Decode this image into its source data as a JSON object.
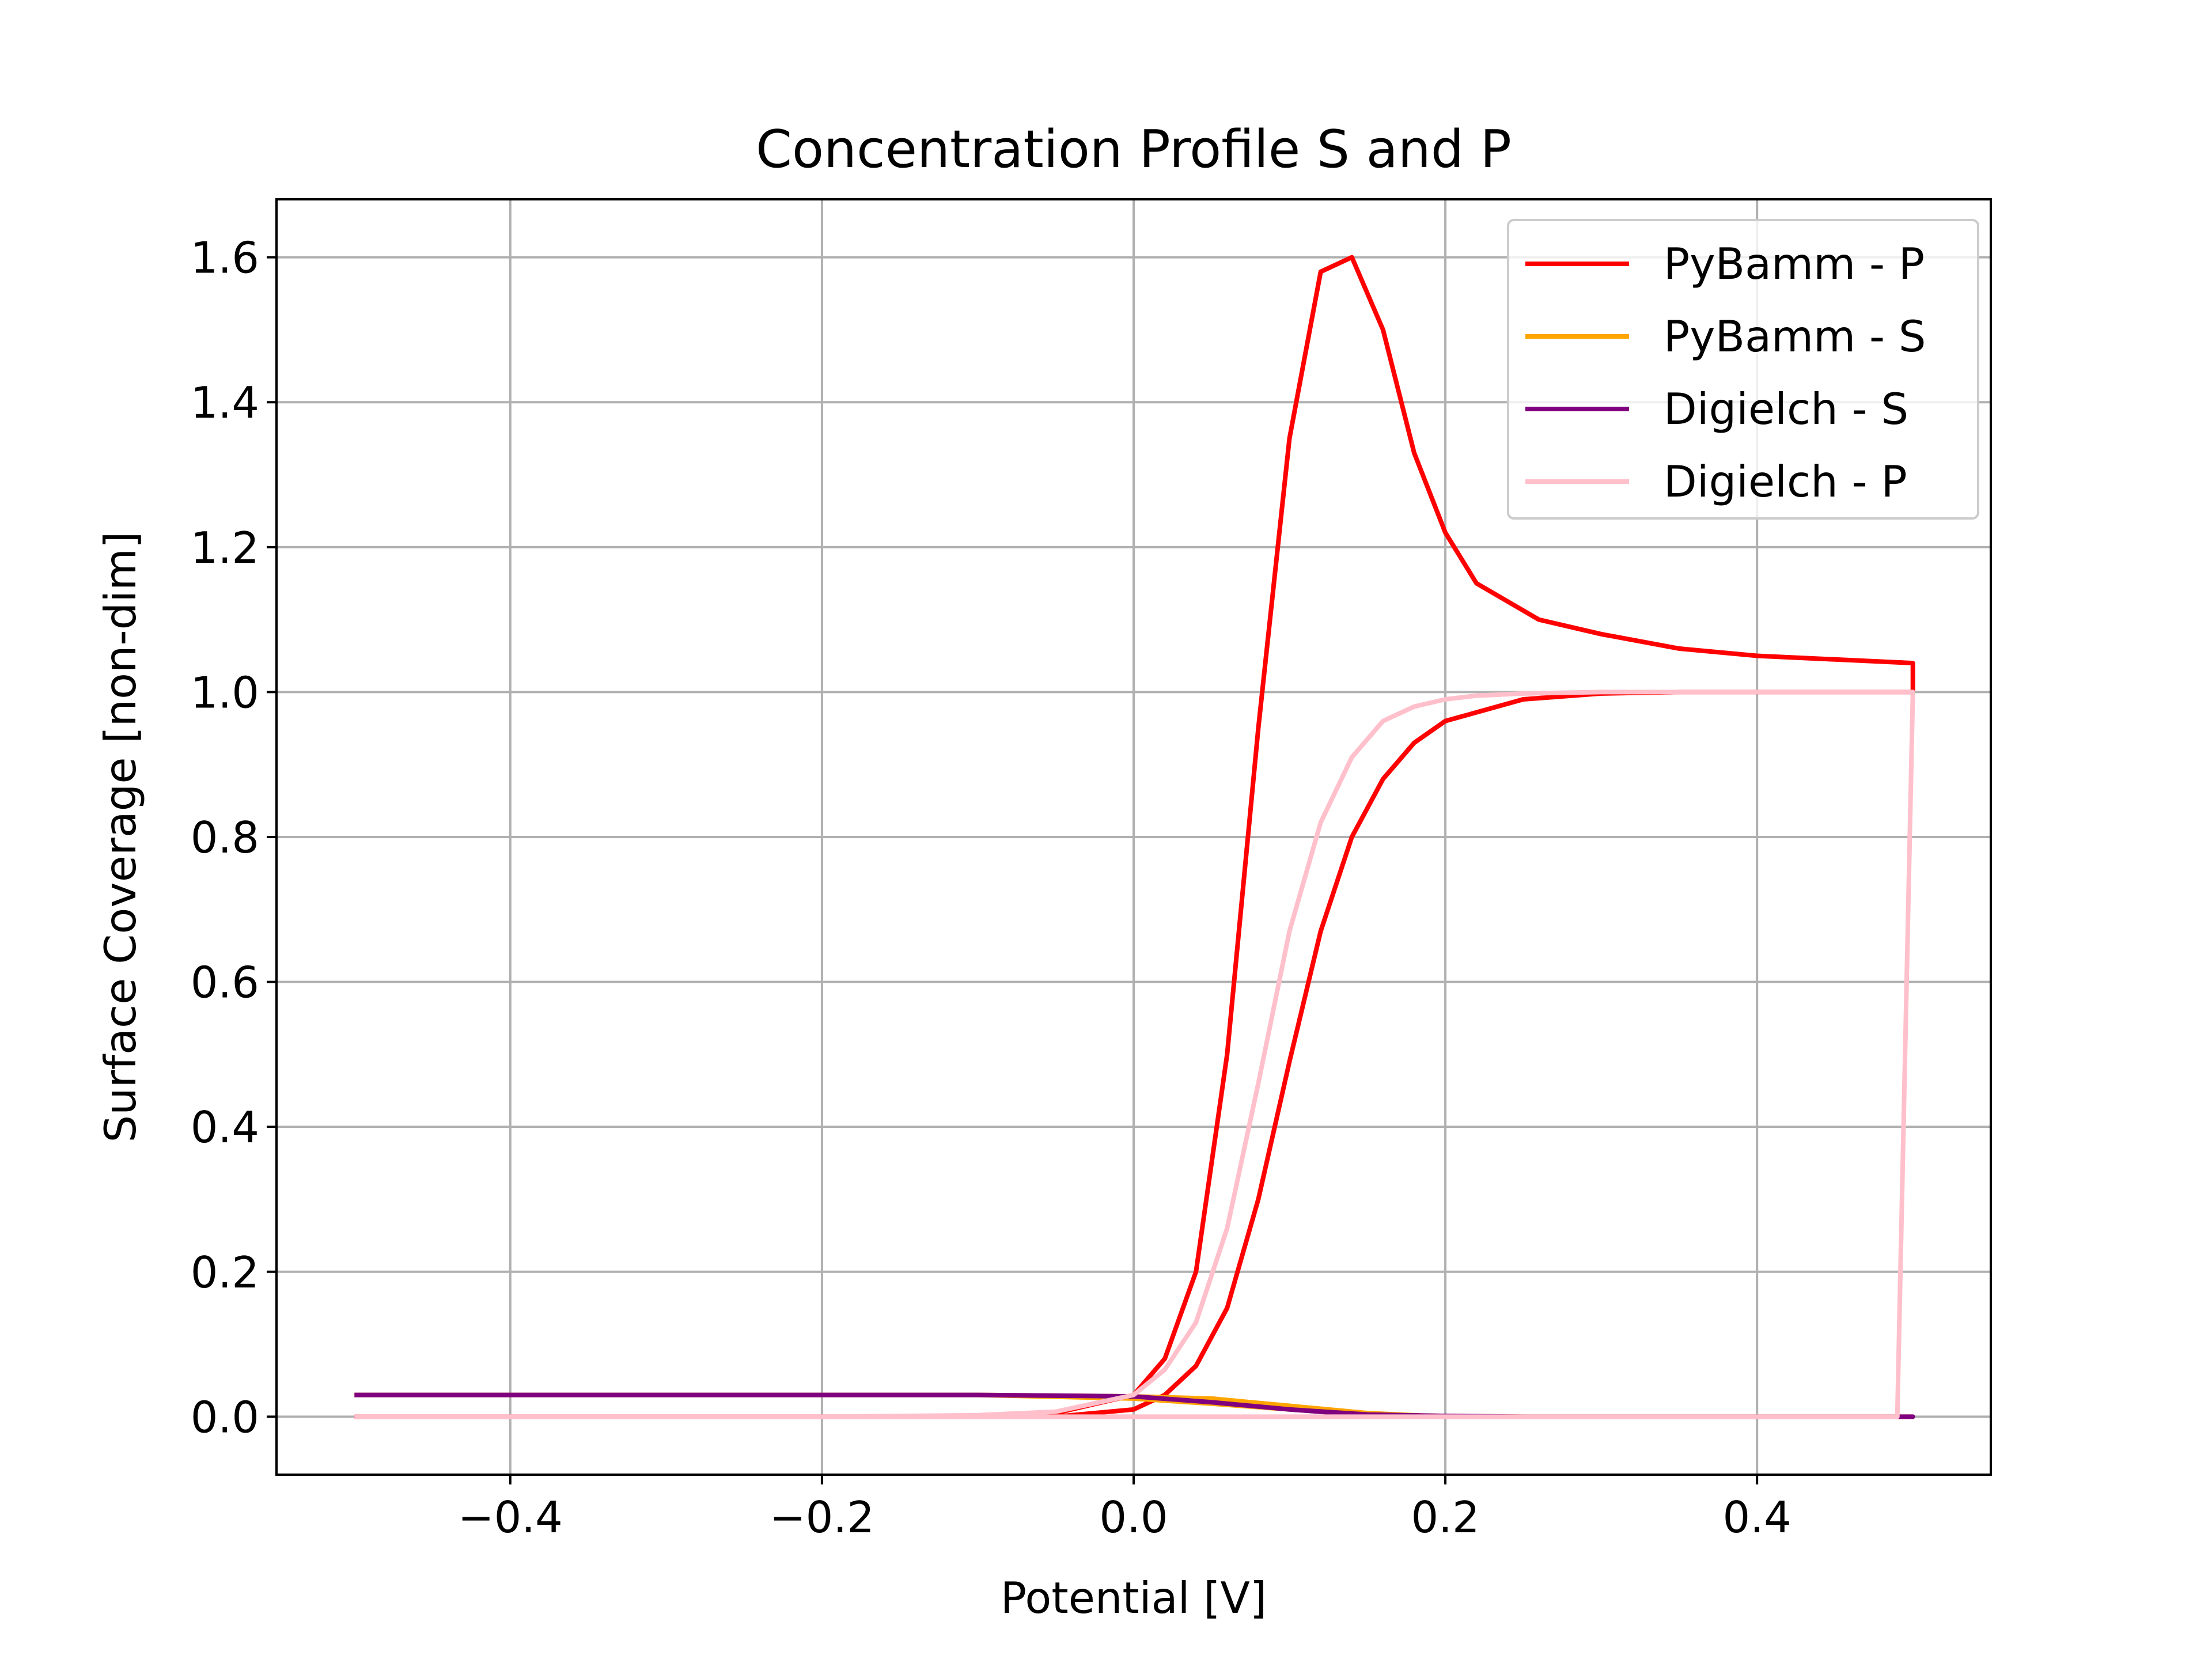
{
  "chart_data": {
    "type": "line",
    "title": "Concentration Profile S and P",
    "xlabel": "Potential [V]",
    "ylabel": "Surface Coverage [non-dim]",
    "xlim": [
      -0.55,
      0.55
    ],
    "ylim": [
      -0.08,
      1.68
    ],
    "xticks": [
      -0.4,
      -0.2,
      0.0,
      0.2,
      0.4
    ],
    "xtick_labels": [
      "−0.4",
      "−0.2",
      "0.0",
      "0.2",
      "0.4"
    ],
    "yticks": [
      0.0,
      0.2,
      0.4,
      0.6,
      0.8,
      1.0,
      1.2,
      1.4,
      1.6
    ],
    "ytick_labels": [
      "0.0",
      "0.2",
      "0.4",
      "0.6",
      "0.8",
      "1.0",
      "1.2",
      "1.4",
      "1.6"
    ],
    "grid": true,
    "legend_position": "top-right",
    "series": [
      {
        "name": "PyBamm - P",
        "color": "#ff0000",
        "x": [
          -0.5,
          -0.2,
          -0.1,
          -0.05,
          0.0,
          0.02,
          0.04,
          0.06,
          0.08,
          0.1,
          0.12,
          0.14,
          0.16,
          0.18,
          0.2,
          0.22,
          0.26,
          0.3,
          0.35,
          0.4,
          0.45,
          0.5,
          0.5,
          0.45,
          0.4,
          0.35,
          0.3,
          0.25,
          0.2,
          0.18,
          0.16,
          0.14,
          0.12,
          0.1,
          0.08,
          0.06,
          0.04,
          0.02,
          0.0,
          -0.05,
          -0.1,
          -0.2,
          -0.5
        ],
        "y": [
          0.0,
          0.0,
          0.0,
          0.005,
          0.03,
          0.08,
          0.2,
          0.5,
          0.95,
          1.35,
          1.58,
          1.6,
          1.5,
          1.33,
          1.22,
          1.15,
          1.1,
          1.08,
          1.06,
          1.05,
          1.045,
          1.04,
          1.0,
          1.0,
          1.0,
          1.0,
          0.998,
          0.99,
          0.96,
          0.93,
          0.88,
          0.8,
          0.67,
          0.49,
          0.3,
          0.15,
          0.07,
          0.03,
          0.01,
          0.0,
          0.0,
          0.0,
          0.0
        ]
      },
      {
        "name": "PyBamm - S",
        "color": "#ffa500",
        "x": [
          -0.5,
          -0.2,
          -0.1,
          0.0,
          0.05,
          0.1,
          0.15,
          0.2,
          0.25,
          0.3,
          0.4,
          0.5,
          0.49,
          0.4,
          0.3,
          0.2,
          0.15,
          0.1,
          0.05,
          0.0,
          -0.1,
          -0.2,
          -0.5
        ],
        "y": [
          0.03,
          0.03,
          0.03,
          0.025,
          0.018,
          0.01,
          0.003,
          0.001,
          0.0,
          0.0,
          0.0,
          0.0,
          0.0,
          0.0,
          0.0,
          0.0,
          0.005,
          0.015,
          0.025,
          0.028,
          0.03,
          0.03,
          0.03
        ]
      },
      {
        "name": "Digielch - S",
        "color": "#800080",
        "x": [
          -0.5,
          -0.2,
          -0.1,
          0.0,
          0.05,
          0.1,
          0.15,
          0.2,
          0.25,
          0.3,
          0.4,
          0.5,
          0.49,
          0.4,
          0.3,
          0.2,
          0.15,
          0.1,
          0.05,
          0.0,
          -0.1,
          -0.2,
          -0.5
        ],
        "y": [
          0.03,
          0.03,
          0.03,
          0.028,
          0.02,
          0.01,
          0.003,
          0.001,
          0.0,
          0.0,
          0.0,
          0.0,
          0.0,
          0.0,
          0.0,
          0.0,
          0.002,
          0.01,
          0.02,
          0.028,
          0.03,
          0.03,
          0.03
        ]
      },
      {
        "name": "Digielch - P",
        "color": "#ffc0cb",
        "x": [
          -0.5,
          -0.2,
          -0.1,
          -0.05,
          0.0,
          0.02,
          0.04,
          0.06,
          0.08,
          0.1,
          0.12,
          0.14,
          0.16,
          0.18,
          0.2,
          0.22,
          0.25,
          0.3,
          0.4,
          0.5,
          0.5,
          0.495,
          0.49,
          0.48,
          0.4,
          0.3,
          0.2,
          0.15,
          0.1,
          0.05,
          0.0,
          -0.1,
          -0.2,
          -0.5
        ],
        "y": [
          0.0,
          0.0,
          0.002,
          0.007,
          0.03,
          0.065,
          0.13,
          0.26,
          0.46,
          0.67,
          0.82,
          0.91,
          0.96,
          0.98,
          0.99,
          0.995,
          0.998,
          1.0,
          1.0,
          1.0,
          1.0,
          0.5,
          0.0,
          0.0,
          0.0,
          0.0,
          0.0,
          0.0,
          0.0,
          0.0,
          0.0,
          0.0,
          0.0,
          0.0
        ]
      }
    ]
  }
}
